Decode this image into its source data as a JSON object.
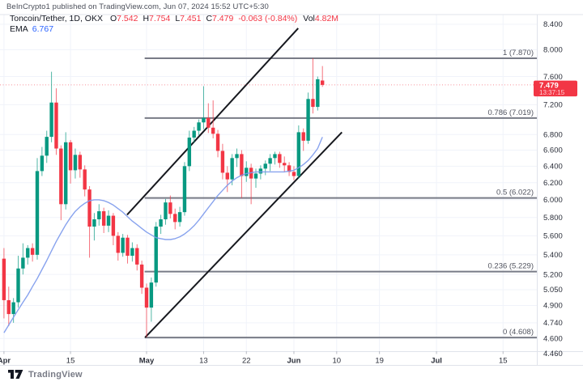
{
  "header": {
    "published_line": "BeInCrypto1 published on TradingView.com, Jun 07, 2024 15:52 UTC+5:30"
  },
  "legend": {
    "symbol": "Toncoin/Tether, 1D, OKX",
    "ohlc": [
      {
        "label": "O",
        "value": "7.542"
      },
      {
        "label": "H",
        "value": "7.754"
      },
      {
        "label": "L",
        "value": "7.451"
      },
      {
        "label": "C",
        "value": "7.479"
      }
    ],
    "change": "-0.063 (-0.84%)",
    "vol_label": "Vol",
    "vol_value": "4.82M",
    "ema_label": "EMA",
    "ema_value": "6.767"
  },
  "footer": {
    "brand": "TradingView"
  },
  "palette": {
    "up": "#089981",
    "down": "#f23645",
    "ema_line": "#7b99ec",
    "fib_line": "#787b86",
    "fib_text": "#50535e",
    "channel_line": "#16181e",
    "grid": "#f0f3fa",
    "border": "#e0e3eb",
    "tick": "#b8bbc4",
    "axis_text": "#2a2e39",
    "badge_bg": "#f23645",
    "badge_text": "#ffffff",
    "badge_countdown": "#ffd2d6",
    "dotted_price_line": "#f23645"
  },
  "chart_data": {
    "type": "candlestick",
    "title": "Toncoin/Tether, 1D, OKX",
    "current_price": 7.479,
    "price_axis_labels": [
      "8.400",
      "8.000",
      "7.600",
      "7.200",
      "6.800",
      "6.600",
      "6.400",
      "6.200",
      "6.000",
      "5.800",
      "5.600",
      "5.400",
      "5.200",
      "5.050",
      "4.900",
      "4.740",
      "4.600",
      "4.460"
    ],
    "last_price_badge": {
      "price": "7.479",
      "countdown": "13:37:15"
    },
    "time_axis_labels": [
      {
        "text": "Apr",
        "day": 0,
        "bold": true
      },
      {
        "text": "15",
        "day": 14,
        "bold": false
      },
      {
        "text": "May",
        "day": 30,
        "bold": true
      },
      {
        "text": "13",
        "day": 42,
        "bold": false
      },
      {
        "text": "22",
        "day": 51,
        "bold": false
      },
      {
        "text": "Jun",
        "day": 61,
        "bold": true
      },
      {
        "text": "10",
        "day": 70,
        "bold": false
      },
      {
        "text": "19",
        "day": 79,
        "bold": false
      },
      {
        "text": "Jul",
        "day": 91,
        "bold": true
      },
      {
        "text": "15",
        "day": 105,
        "bold": false
      }
    ],
    "fib_levels": [
      {
        "label": "1 (7.870)",
        "price": 7.87,
        "start_day": 29.6
      },
      {
        "label": "0.786 (7.019)",
        "price": 7.019,
        "start_day": 29.6
      },
      {
        "label": "0.5 (6.022)",
        "price": 6.022,
        "start_day": 29.6
      },
      {
        "label": "0.236 (5.229)",
        "price": 5.229,
        "start_day": 29.6
      },
      {
        "label": "0 (4.608)",
        "price": 4.608,
        "start_day": 29.6
      }
    ],
    "channel_lines": [
      {
        "name": "lower",
        "d1": 29.7,
        "p1": 4.609,
        "d2": 71.1,
        "p2": 6.83
      },
      {
        "name": "upper",
        "d1": 25.9,
        "p1": 5.83,
        "d2": 61.9,
        "p2": 8.337
      }
    ],
    "candle_columns": [
      "date",
      "open",
      "high",
      "low",
      "close"
    ],
    "candles": [
      [
        "Apr 1",
        5.36,
        5.47,
        4.78,
        4.95
      ],
      [
        "Apr 2",
        4.95,
        5.08,
        4.71,
        4.82
      ],
      [
        "Apr 3",
        4.82,
        4.97,
        4.74,
        4.93
      ],
      [
        "Apr 4",
        4.93,
        5.39,
        4.88,
        5.26
      ],
      [
        "Apr 5",
        5.26,
        5.52,
        5.2,
        5.37
      ],
      [
        "Apr 6",
        5.37,
        5.5,
        5.3,
        5.47
      ],
      [
        "Apr 7",
        5.47,
        5.52,
        5.33,
        5.4
      ],
      [
        "Apr 8",
        5.4,
        6.5,
        5.35,
        6.34
      ],
      [
        "Apr 9",
        6.34,
        6.64,
        6.28,
        6.53
      ],
      [
        "Apr 10",
        6.53,
        6.85,
        6.44,
        6.77
      ],
      [
        "Apr 11",
        6.77,
        7.67,
        6.7,
        7.23
      ],
      [
        "Apr 12",
        7.23,
        7.43,
        6.54,
        6.62
      ],
      [
        "Apr 13",
        6.62,
        6.66,
        5.77,
        5.95
      ],
      [
        "Apr 14",
        5.95,
        6.83,
        5.89,
        6.7
      ],
      [
        "Apr 15",
        6.7,
        6.73,
        6.19,
        6.35
      ],
      [
        "Apr 16",
        6.35,
        6.62,
        6.25,
        6.54
      ],
      [
        "Apr 17",
        6.54,
        6.58,
        6.26,
        6.36
      ],
      [
        "Apr 18",
        6.36,
        6.41,
        6.04,
        6.12
      ],
      [
        "Apr 19",
        6.12,
        6.16,
        5.37,
        5.7
      ],
      [
        "Apr 20",
        5.7,
        5.85,
        5.55,
        5.78
      ],
      [
        "Apr 21",
        5.78,
        5.95,
        5.71,
        5.87
      ],
      [
        "Apr 22",
        5.87,
        5.91,
        5.63,
        5.71
      ],
      [
        "Apr 23",
        5.71,
        5.88,
        5.64,
        5.82
      ],
      [
        "Apr 24",
        5.82,
        5.85,
        5.5,
        5.6
      ],
      [
        "Apr 25",
        5.6,
        5.64,
        5.34,
        5.42
      ],
      [
        "Apr 26",
        5.42,
        5.62,
        5.38,
        5.58
      ],
      [
        "Apr 27",
        5.58,
        5.61,
        5.31,
        5.39
      ],
      [
        "Apr 28",
        5.39,
        5.53,
        5.33,
        5.47
      ],
      [
        "Apr 29",
        5.47,
        5.51,
        5.24,
        5.3
      ],
      [
        "Apr 30",
        5.3,
        5.34,
        5.01,
        5.07
      ],
      [
        "May 1",
        5.07,
        5.11,
        4.61,
        4.88
      ],
      [
        "May 2",
        4.88,
        5.17,
        4.75,
        5.12
      ],
      [
        "May 3",
        5.12,
        5.75,
        5.08,
        5.7
      ],
      [
        "May 4",
        5.7,
        5.83,
        5.62,
        5.78
      ],
      [
        "May 5",
        5.78,
        6.01,
        5.72,
        5.97
      ],
      [
        "May 6",
        5.97,
        6.05,
        5.79,
        5.84
      ],
      [
        "May 7",
        5.84,
        5.9,
        5.67,
        5.75
      ],
      [
        "May 8",
        5.75,
        5.92,
        5.7,
        5.86
      ],
      [
        "May 9",
        5.86,
        6.45,
        5.82,
        6.4
      ],
      [
        "May 10",
        6.4,
        6.85,
        6.34,
        6.76
      ],
      [
        "May 11",
        6.76,
        6.9,
        6.69,
        6.85
      ],
      [
        "May 12",
        6.85,
        7.0,
        6.79,
        6.96
      ],
      [
        "May 13",
        6.96,
        7.46,
        6.87,
        7.02
      ],
      [
        "May 14",
        7.02,
        7.22,
        6.82,
        6.89
      ],
      [
        "May 15",
        6.89,
        7.26,
        6.75,
        6.81
      ],
      [
        "May 16",
        6.81,
        6.86,
        6.51,
        6.59
      ],
      [
        "May 17",
        6.59,
        6.68,
        6.24,
        6.32
      ],
      [
        "May 18",
        6.32,
        6.4,
        6.09,
        6.24
      ],
      [
        "May 19",
        6.24,
        6.55,
        6.17,
        6.5
      ],
      [
        "May 20",
        6.5,
        6.62,
        6.39,
        6.55
      ],
      [
        "May 21",
        6.55,
        6.6,
        6.02,
        6.28
      ],
      [
        "May 22",
        6.28,
        6.46,
        6.21,
        6.38
      ],
      [
        "May 23",
        6.38,
        6.43,
        5.95,
        6.25
      ],
      [
        "May 24",
        6.25,
        6.37,
        6.14,
        6.31
      ],
      [
        "May 25",
        6.31,
        6.41,
        6.24,
        6.37
      ],
      [
        "May 26",
        6.37,
        6.47,
        6.29,
        6.43
      ],
      [
        "May 27",
        6.43,
        6.55,
        6.34,
        6.5
      ],
      [
        "May 28",
        6.5,
        6.58,
        6.42,
        6.55
      ],
      [
        "May 29",
        6.55,
        6.58,
        6.38,
        6.44
      ],
      [
        "May 30",
        6.44,
        6.52,
        6.33,
        6.41
      ],
      [
        "May 31",
        6.41,
        6.45,
        6.28,
        6.33
      ],
      [
        "Jun 1",
        6.33,
        6.4,
        6.23,
        6.28
      ],
      [
        "Jun 2",
        6.28,
        6.92,
        6.25,
        6.83
      ],
      [
        "Jun 3",
        6.83,
        6.88,
        6.59,
        6.72
      ],
      [
        "Jun 4",
        6.72,
        7.37,
        6.68,
        7.28
      ],
      [
        "Jun 5",
        7.28,
        7.87,
        7.08,
        7.17
      ],
      [
        "Jun 6",
        7.17,
        7.6,
        7.12,
        7.56
      ],
      [
        "Jun 7",
        7.542,
        7.754,
        7.451,
        7.479
      ]
    ],
    "ema_values": [
      4.65,
      4.72,
      4.79,
      4.86,
      4.93,
      5.0,
      5.08,
      5.16,
      5.25,
      5.34,
      5.44,
      5.54,
      5.63,
      5.72,
      5.8,
      5.87,
      5.92,
      5.96,
      5.99,
      6.0,
      6.0,
      5.99,
      5.97,
      5.94,
      5.9,
      5.86,
      5.81,
      5.76,
      5.72,
      5.68,
      5.64,
      5.61,
      5.58,
      5.57,
      5.56,
      5.56,
      5.57,
      5.59,
      5.62,
      5.66,
      5.71,
      5.77,
      5.84,
      5.91,
      5.98,
      6.05,
      6.11,
      6.17,
      6.22,
      6.26,
      6.29,
      6.31,
      6.32,
      6.33,
      6.33,
      6.33,
      6.33,
      6.33,
      6.33,
      6.33,
      6.34,
      6.35,
      6.38,
      6.42,
      6.47,
      6.54,
      6.62,
      6.767
    ]
  }
}
